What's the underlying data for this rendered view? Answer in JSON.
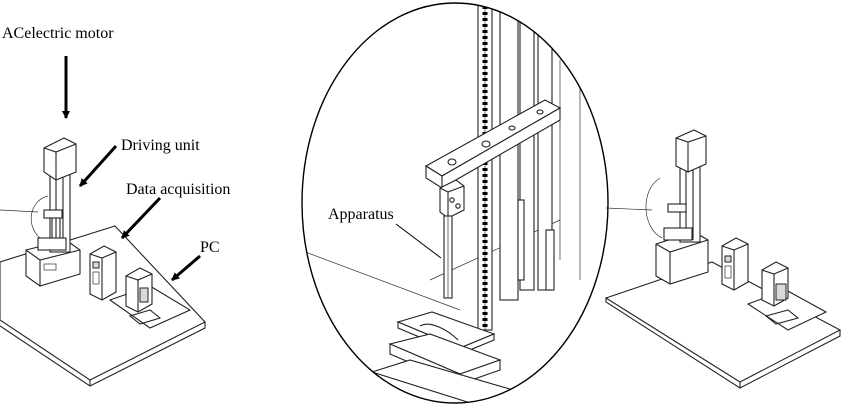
{
  "labels": {
    "ac_motor": "ACelectric motor",
    "driving_unit": "Driving unit",
    "data_acquisition": "Data acquisition",
    "pc": "PC",
    "apparatus": "Apparatus"
  }
}
